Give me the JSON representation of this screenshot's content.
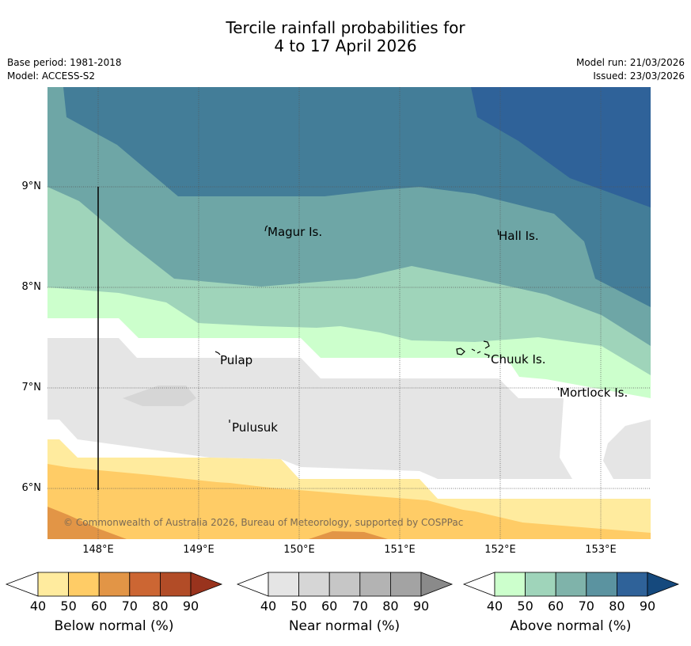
{
  "header": {
    "title_line1": "Tercile rainfall probabilities for",
    "title_line2": "4 to 17 April 2026",
    "base_period": "Base period: 1981-2018",
    "model": "Model: ACCESS-S2",
    "model_run": "Model run: 21/03/2026",
    "issued": "Issued: 23/03/2026"
  },
  "map": {
    "lat_labels": [
      "9°N",
      "8°N",
      "7°N",
      "6°N"
    ],
    "lon_labels": [
      "148°E",
      "149°E",
      "150°E",
      "151°E",
      "152°E",
      "153°E"
    ],
    "places": [
      "Magur Is.",
      "Hall Is.",
      "Pulap",
      "Chuuk Is.",
      "Mortlock Is.",
      "Pulusuk"
    ],
    "copyright": "© Commonwealth of Australia 2026, Bureau of Meteorology, supported by COSPPac"
  },
  "legend": {
    "below": {
      "label": "Below normal (%)",
      "ticks": [
        "40",
        "50",
        "60",
        "70",
        "80",
        "90"
      ],
      "colors": [
        "#ffffff",
        "#ffeb9e",
        "#ffcc66",
        "#e29546",
        "#cc6633",
        "#b24c27",
        "#99331d"
      ]
    },
    "near": {
      "label": "Near normal (%)",
      "ticks": [
        "40",
        "50",
        "60",
        "70",
        "80",
        "90"
      ],
      "colors": [
        "#ffffff",
        "#e5e5e5",
        "#d6d6d6",
        "#c6c6c6",
        "#b3b3b3",
        "#a3a3a3",
        "#8a8a8a"
      ]
    },
    "above": {
      "label": "Above normal (%)",
      "ticks": [
        "40",
        "50",
        "60",
        "70",
        "80",
        "90"
      ],
      "colors": [
        "#ffffff",
        "#ccffcc",
        "#9fd4ba",
        "#6ea6a6",
        "#5b93a0",
        "#2f6299",
        "#15497d"
      ]
    }
  }
}
